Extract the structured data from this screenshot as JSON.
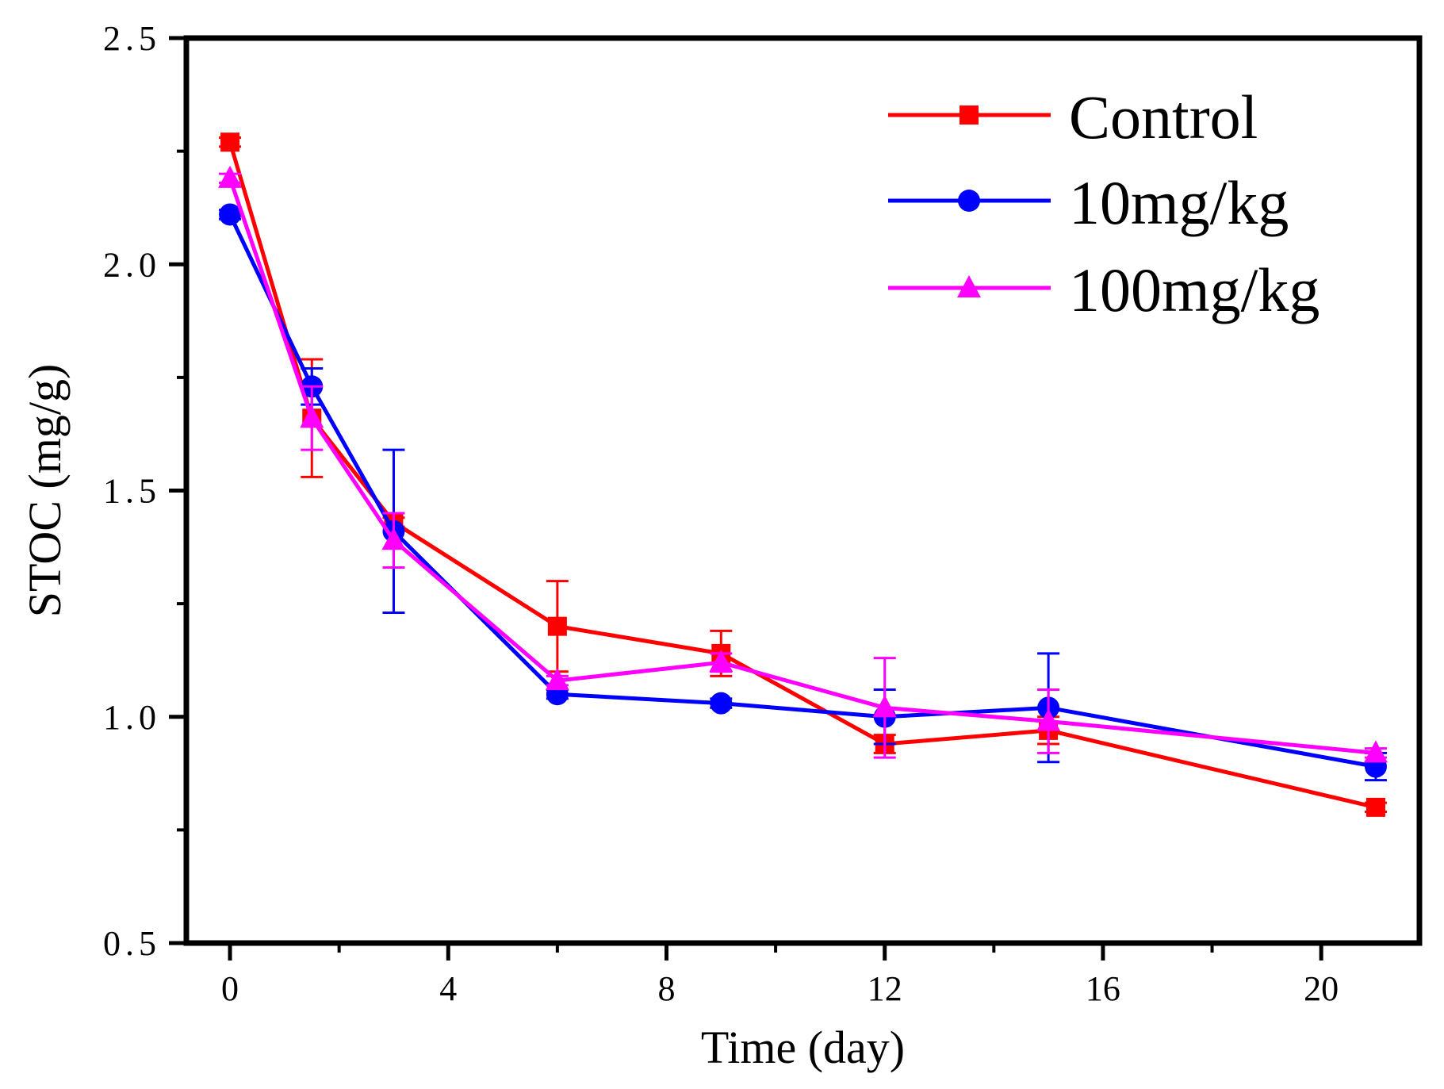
{
  "chart_data": {
    "type": "line",
    "title": "",
    "xlabel": "Time (day)",
    "ylabel": "STOC (mg/g)",
    "xlim": [
      -0.8,
      21.8
    ],
    "ylim": [
      0.5,
      2.5
    ],
    "xticks": [
      0,
      4,
      8,
      12,
      16,
      20
    ],
    "yticks": [
      0.5,
      1.0,
      1.5,
      2.0,
      2.5
    ],
    "xtick_labels": [
      "0",
      "4",
      "8",
      "12",
      "16",
      "20"
    ],
    "ytick_labels": [
      "0.5",
      "1.0",
      "1.5",
      "2.0",
      "2.5"
    ],
    "grid": false,
    "legend_position": "top-right",
    "series": [
      {
        "name": "Control",
        "color": "#ff0000",
        "marker": "square",
        "x": [
          0,
          1.5,
          3,
          6,
          9,
          12,
          15,
          21
        ],
        "y": [
          2.27,
          1.66,
          1.43,
          1.2,
          1.14,
          0.94,
          0.97,
          0.8
        ],
        "err": [
          0.01,
          0.13,
          0.01,
          0.1,
          0.05,
          0.02,
          0.03,
          0.01
        ]
      },
      {
        "name": "10mg/kg",
        "color": "#0000ff",
        "marker": "circle",
        "x": [
          0,
          1.5,
          3,
          6,
          9,
          12,
          15,
          21
        ],
        "y": [
          2.11,
          1.73,
          1.41,
          1.05,
          1.03,
          1.0,
          1.02,
          0.89
        ],
        "err": [
          0.01,
          0.04,
          0.18,
          0.01,
          0.01,
          0.06,
          0.12,
          0.03
        ]
      },
      {
        "name": "100mg/kg",
        "color": "#ff00ff",
        "marker": "triangle",
        "x": [
          0,
          1.5,
          3,
          6,
          9,
          12,
          15,
          21
        ],
        "y": [
          2.19,
          1.66,
          1.39,
          1.08,
          1.12,
          1.02,
          0.99,
          0.92
        ],
        "err": [
          0.01,
          0.07,
          0.06,
          0.01,
          0.02,
          0.11,
          0.07,
          0.01
        ]
      }
    ]
  }
}
